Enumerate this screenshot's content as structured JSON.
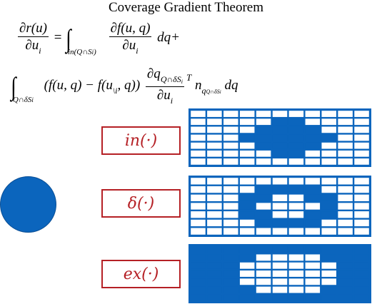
{
  "title": "Coverage Gradient Theorem",
  "equation": {
    "lhs_num": "∂r(u)",
    "lhs_den": "∂u",
    "lhs_den_sub": "i",
    "equals": "=",
    "int1_limit": "in(Q∩S",
    "int1_limit_sub": "i",
    "int1_limit_close": ")",
    "frac1_num": "∂f(u, q)",
    "frac1_den": "∂u",
    "frac1_den_sub": "i",
    "term1_tail": "dq+",
    "int2_limit": "Q∩δS",
    "int2_limit_sub": "i",
    "term2_paren": "(f(u, q) − f(u",
    "term2_sub": "\\i",
    "term2_paren_close": ", q))",
    "frac2_num": "∂q",
    "frac2_num_sub": "Q∩δS",
    "frac2_num_sub2": "i",
    "frac2_den": "∂u",
    "frac2_den_sub": "i",
    "sup_T": "T",
    "normal": "n",
    "normal_sub": "q",
    "normal_sub2": "Q∩δS",
    "normal_sub3": "i",
    "term2_tail": "dq"
  },
  "operators": [
    {
      "label": "in(·)"
    },
    {
      "label": "δ(·)"
    },
    {
      "label": "ex(·)"
    }
  ],
  "colors": {
    "blue": "#0b65bd",
    "red": "#b52025",
    "white": "#ffffff"
  },
  "grids": {
    "cols": 11,
    "rows": 7,
    "in_mask": [
      "00000000000",
      "00000110000",
      "00001111000",
      "00011111100",
      "00001111000",
      "00000110000",
      "00000000000"
    ],
    "delta_mask": [
      "00000000000",
      "00001111000",
      "00011001100",
      "00010000100",
      "00011001100",
      "00001111000",
      "00000000000"
    ],
    "ex_mask": [
      "11111111111",
      "11110000111",
      "11100000011",
      "11100000011",
      "11100000011",
      "11110000111",
      "11111111111"
    ]
  }
}
